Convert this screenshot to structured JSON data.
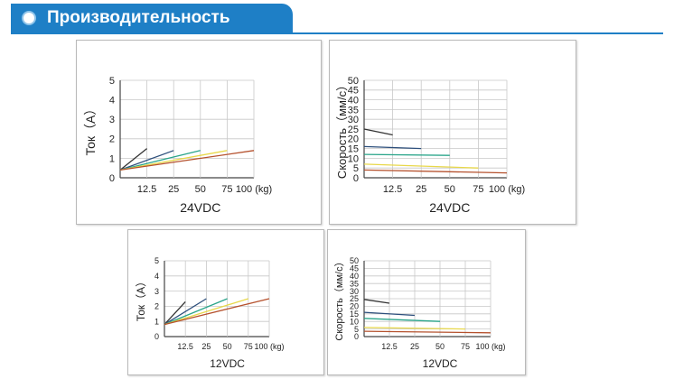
{
  "header": {
    "title": "Производительность"
  },
  "colors": {
    "header_bg": "#1e7fc6"
  },
  "chart_data": [
    {
      "type": "line",
      "title": "",
      "xlabel": "",
      "ylabel": "Ток（A）",
      "voltage_label": "24VDC",
      "x_ticks": [
        "12.5",
        "25",
        "50",
        "75",
        "100 (kg)"
      ],
      "y_ticks": [
        "0",
        "1",
        "2",
        "3",
        "4",
        "5"
      ],
      "ylim": [
        0,
        5
      ],
      "grid": true,
      "series": [
        {
          "color": "#333333",
          "points": [
            [
              0,
              0.4
            ],
            [
              1,
              1.5
            ]
          ]
        },
        {
          "color": "#2d4f7c",
          "points": [
            [
              0,
              0.4
            ],
            [
              2,
              1.4
            ]
          ]
        },
        {
          "color": "#2aa58a",
          "points": [
            [
              0,
              0.4
            ],
            [
              3,
              1.4
            ]
          ]
        },
        {
          "color": "#e8d84a",
          "points": [
            [
              0,
              0.4
            ],
            [
              4,
              1.4
            ]
          ]
        },
        {
          "color": "#b5512d",
          "points": [
            [
              0,
              0.4
            ],
            [
              5,
              1.4
            ]
          ]
        }
      ]
    },
    {
      "type": "line",
      "title": "",
      "xlabel": "",
      "ylabel": "Скорость（мм/с）",
      "voltage_label": "24VDC",
      "x_ticks": [
        "12.5",
        "25",
        "50",
        "75",
        "100 (kg)"
      ],
      "y_ticks": [
        "0",
        "5",
        "10",
        "15",
        "20",
        "25",
        "30",
        "35",
        "40",
        "45",
        "50"
      ],
      "ylim": [
        0,
        50
      ],
      "grid": true,
      "series": [
        {
          "color": "#333333",
          "points": [
            [
              0,
              25
            ],
            [
              1,
              22
            ]
          ]
        },
        {
          "color": "#2d4f7c",
          "points": [
            [
              0,
              16
            ],
            [
              2,
              15
            ]
          ]
        },
        {
          "color": "#2aa58a",
          "points": [
            [
              0,
              12
            ],
            [
              3,
              11.5
            ]
          ]
        },
        {
          "color": "#e8d84a",
          "points": [
            [
              0,
              7
            ],
            [
              4,
              5
            ]
          ]
        },
        {
          "color": "#b5512d",
          "points": [
            [
              0,
              4
            ],
            [
              5,
              2.5
            ]
          ]
        }
      ]
    },
    {
      "type": "line",
      "title": "",
      "xlabel": "",
      "ylabel": "Ток（A）",
      "voltage_label": "12VDC",
      "x_ticks": [
        "12.5",
        "25",
        "50",
        "75",
        "100 (kg)"
      ],
      "y_ticks": [
        "0",
        "1",
        "2",
        "3",
        "4",
        "5"
      ],
      "ylim": [
        0,
        5
      ],
      "grid": true,
      "series": [
        {
          "color": "#333333",
          "points": [
            [
              0,
              0.8
            ],
            [
              1,
              2.3
            ]
          ]
        },
        {
          "color": "#2d4f7c",
          "points": [
            [
              0,
              0.8
            ],
            [
              2,
              2.5
            ]
          ]
        },
        {
          "color": "#2aa58a",
          "points": [
            [
              0,
              0.8
            ],
            [
              3,
              2.5
            ]
          ]
        },
        {
          "color": "#e8d84a",
          "points": [
            [
              0,
              0.8
            ],
            [
              4,
              2.5
            ]
          ]
        },
        {
          "color": "#b5512d",
          "points": [
            [
              0,
              0.8
            ],
            [
              5,
              2.5
            ]
          ]
        }
      ]
    },
    {
      "type": "line",
      "title": "",
      "xlabel": "",
      "ylabel": "Скорость（мм/с）",
      "voltage_label": "12VDC",
      "x_ticks": [
        "12.5",
        "25",
        "50",
        "75",
        "100 (kg)"
      ],
      "y_ticks": [
        "0",
        "5",
        "10",
        "15",
        "20",
        "25",
        "30",
        "35",
        "40",
        "45",
        "50"
      ],
      "ylim": [
        0,
        50
      ],
      "grid": true,
      "series": [
        {
          "color": "#333333",
          "points": [
            [
              0,
              24.5
            ],
            [
              1,
              22
            ]
          ]
        },
        {
          "color": "#2d4f7c",
          "points": [
            [
              0,
              16
            ],
            [
              2,
              14
            ]
          ]
        },
        {
          "color": "#2aa58a",
          "points": [
            [
              0,
              12
            ],
            [
              3,
              10
            ]
          ]
        },
        {
          "color": "#e8d84a",
          "points": [
            [
              0,
              6
            ],
            [
              4,
              5
            ]
          ]
        },
        {
          "color": "#b5512d",
          "points": [
            [
              0,
              3.5
            ],
            [
              5,
              2.5
            ]
          ]
        }
      ]
    }
  ]
}
